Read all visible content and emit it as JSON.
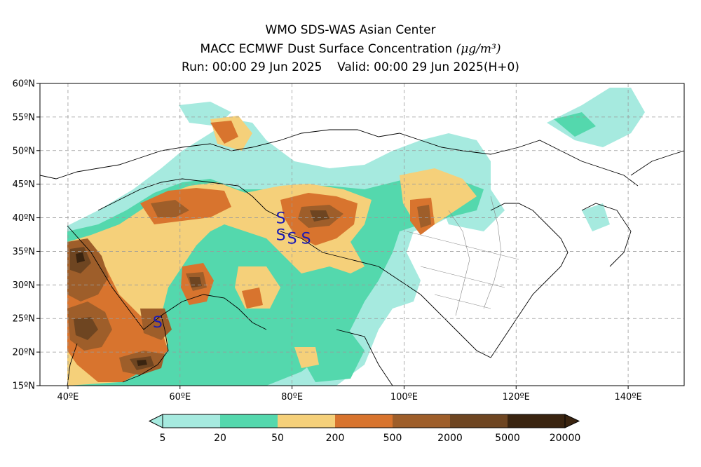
{
  "title": {
    "line1": "WMO SDS-WAS Asian Center",
    "line2_text": "MACC ECMWF Dust Surface Concentration",
    "line2_unit": "(μg/m³)",
    "line3_run": "Run: 00:00 29 Jun 2025",
    "line3_valid": "Valid: 00:00 29 Jun 2025(H+0)"
  },
  "map": {
    "lon_range": [
      35,
      150
    ],
    "lat_range": [
      15,
      60
    ],
    "lat_ticks": [
      "15ºN",
      "20ºN",
      "25ºN",
      "30ºN",
      "35ºN",
      "40ºN",
      "45ºN",
      "50ºN",
      "55ºN",
      "60ºN"
    ],
    "lon_ticks": [
      "40ºE",
      "60ºE",
      "80ºE",
      "100ºE",
      "120ºE",
      "140ºE"
    ],
    "grid": true,
    "storm_symbol": "S",
    "storm_markers": [
      {
        "lon": 78,
        "lat": 40
      },
      {
        "lon": 78,
        "lat": 37.5
      },
      {
        "lon": 80,
        "lat": 37
      },
      {
        "lon": 82.5,
        "lat": 37
      },
      {
        "lon": 56,
        "lat": 24.5
      }
    ]
  },
  "colorbar": {
    "labels": [
      "5",
      "20",
      "50",
      "200",
      "500",
      "2000",
      "5000",
      "20000"
    ],
    "colors": [
      "#a6eadf",
      "#54d8ad",
      "#f5d07a",
      "#d8742e",
      "#9e5e2a",
      "#6e4521",
      "#3a2410"
    ]
  }
}
